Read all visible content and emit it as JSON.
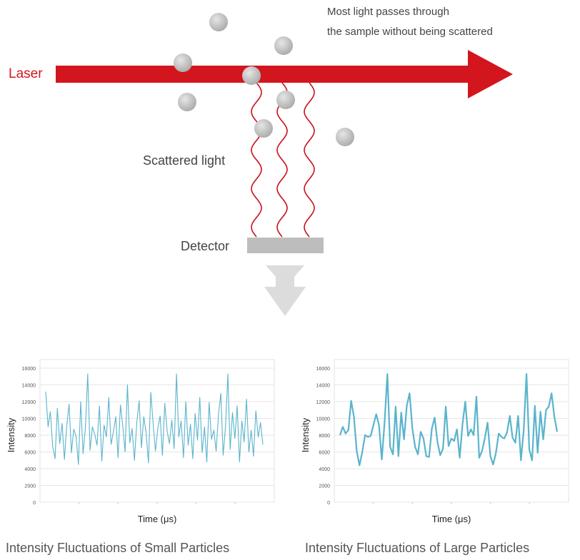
{
  "diagram": {
    "laser_label": "Laser",
    "note_lines": [
      "Most light passes through",
      "the sample without being scattered"
    ],
    "scattered_label": "Scattered light",
    "detector_label": "Detector",
    "colors": {
      "laser": "#d3151d",
      "particle": "#bdbdbd",
      "detector": "#bdbdbd",
      "arrow_down": "#dcdcdc",
      "trace": "#5ab4cc"
    }
  },
  "charts": {
    "small": {
      "caption": "Intensity Fluctuations of Small Particles",
      "ylabel": "Intensity",
      "xlabel": "Time (μs)"
    },
    "large": {
      "caption": "Intensity Fluctuations of Large Particles",
      "ylabel": "Intensity",
      "xlabel": "Time (μs)"
    }
  },
  "chart_data": [
    {
      "type": "line",
      "ylabel": "Intensity",
      "xlabel": "Time (μs)",
      "ylim": [
        0,
        16000
      ],
      "yticks": [
        0,
        2000,
        4000,
        6000,
        8000,
        10000,
        12000,
        14000,
        16000
      ],
      "grid": true,
      "series": [
        {
          "values": [
            13200,
            9000,
            10800,
            6600,
            5200,
            11200,
            7000,
            9400,
            5100,
            9100,
            11700,
            5900,
            8700,
            7900,
            4500,
            12000,
            5800,
            8900,
            15300,
            6200,
            9000,
            8100,
            6800,
            11500,
            4900,
            9200,
            7800,
            12500,
            6900,
            8400,
            10200,
            5300,
            11600,
            9100,
            6000,
            14000,
            7100,
            8800,
            5000,
            9500,
            12100,
            6500,
            10200,
            8300,
            4700,
            13100,
            9400,
            6100,
            8800,
            10300,
            5600,
            11800,
            8500,
            7000,
            9800,
            6400,
            15300,
            7800,
            9700,
            5300,
            12000,
            6800,
            9300,
            5200,
            10600,
            7400,
            12500,
            5900,
            9000,
            4800,
            11900,
            7500,
            8600,
            6100,
            10500,
            13000,
            5600,
            9000,
            15300,
            6300,
            10700,
            7600,
            11500,
            4800,
            9700,
            7200,
            12300,
            6000,
            8600,
            5500,
            10900,
            7800,
            9500,
            6900
          ]
        }
      ]
    },
    {
      "type": "line",
      "ylabel": "Intensity",
      "xlabel": "Time (μs)",
      "ylim": [
        0,
        16000
      ],
      "yticks": [
        0,
        2000,
        4000,
        6000,
        8000,
        10000,
        12000,
        14000,
        16000
      ],
      "grid": true,
      "series": [
        {
          "values": [
            8000,
            9000,
            8200,
            8600,
            12100,
            10200,
            6100,
            4400,
            6000,
            8000,
            7800,
            7900,
            9200,
            10500,
            9200,
            5100,
            9500,
            15300,
            6600,
            5700,
            11400,
            5500,
            10700,
            7500,
            11500,
            13000,
            8800,
            6600,
            5700,
            8400,
            7600,
            5500,
            5400,
            8800,
            10100,
            7200,
            5600,
            6400,
            11400,
            6700,
            7600,
            7300,
            8700,
            5300,
            9300,
            12000,
            7900,
            8700,
            8000,
            12600,
            5300,
            6100,
            7600,
            9500,
            5500,
            4500,
            5900,
            8200,
            7800,
            7600,
            8300,
            10300,
            7700,
            7100,
            10300,
            5000,
            8600,
            15300,
            6300,
            5000,
            11500,
            5900,
            10800,
            7500,
            11000,
            11400,
            13000,
            10200,
            8400
          ]
        }
      ]
    }
  ]
}
